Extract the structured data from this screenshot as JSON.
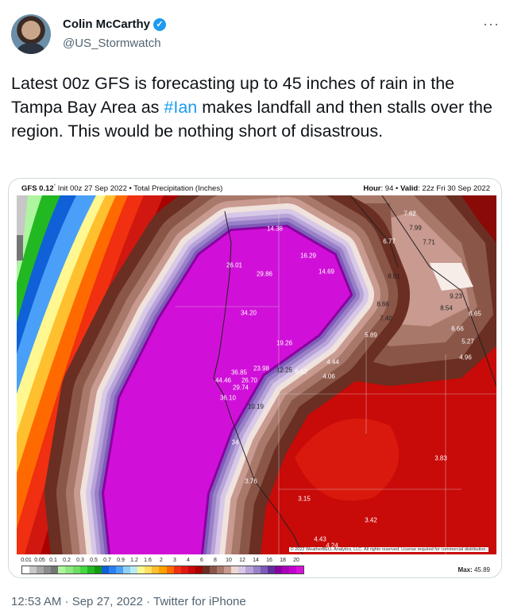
{
  "author": {
    "name": "Colin McCarthy",
    "handle": "@US_Stormwatch",
    "verified_icon": "verified-badge-icon",
    "more_icon": "more-horizontal-icon"
  },
  "tweet": {
    "text_before": "Latest 00z GFS is forecasting up to 45 inches of rain in the Tampa Bay Area as ",
    "hashtag": "#Ian",
    "text_after": " makes landfall and then stalls over the region. This would be nothing short of disastrous."
  },
  "map": {
    "model": "GFS 0.12",
    "deg": "°",
    "subtitle": " Init 00z 27 Sep 2022 • Total Precipitation (Inches)",
    "hour_label": "Hour",
    "hour_value": ": 94 • ",
    "valid_label": "Valid",
    "valid_value": ": 22z Fri 30 Sep 2022",
    "copyright": "© 2022 WeatherBELL Analytics, LLC. All rights reserved. License required for commercial distribution.",
    "max_label": "Max:",
    "max_value": " 45.89",
    "point_labels": [
      "7.62",
      "14.38",
      "7.99",
      "6.77",
      "7.71",
      "16.29",
      "26.01",
      "29.86",
      "14.69",
      "8.01",
      "9.23",
      "8.54",
      "8.66",
      "34.20",
      "7.40",
      "6.65",
      "6.66",
      "5.89",
      "5.27",
      "19.26",
      "4.96",
      "4.44",
      "23.98",
      "12.25",
      "6.62",
      "36.85",
      "4.06",
      "26.70",
      "44.46",
      "29.74",
      "36.10",
      "10.19",
      "34",
      "3.83",
      "3.76",
      "3.15",
      "3.42",
      "4.43",
      "4.24"
    ],
    "legend_ticks": [
      "0.01",
      "0.05",
      "0.1",
      "0.2",
      "0.3",
      "0.5",
      "0.7",
      "0.9",
      "1.2",
      "1.6",
      "2",
      "3",
      "4",
      "6",
      "8",
      "10",
      "12",
      "14",
      "16",
      "18",
      "20"
    ],
    "legend_colors": [
      "#ffffff",
      "#c8c8c8",
      "#a8a8a8",
      "#8c8c8c",
      "#747474",
      "#aef5a0",
      "#8ee882",
      "#6ede62",
      "#46d640",
      "#22b822",
      "#119a11",
      "#1060d8",
      "#2a80f0",
      "#4aa0f8",
      "#90d0f8",
      "#b8ecf4",
      "#fff890",
      "#ffe060",
      "#ffc030",
      "#ffa000",
      "#ff6a00",
      "#f03010",
      "#e01810",
      "#c80808",
      "#a80000",
      "#6a2e22",
      "#8a5648",
      "#a8786a",
      "#c89a90",
      "#ecd8d0",
      "#d8c8e8",
      "#b8a4d8",
      "#9a80c8",
      "#7c5cb8",
      "#60309a",
      "#8a00a0",
      "#a800b8",
      "#c400cc",
      "#d810dc"
    ]
  },
  "footer": {
    "time": "12:53 AM · Sep 27, 2022 · Twitter for iPhone"
  }
}
